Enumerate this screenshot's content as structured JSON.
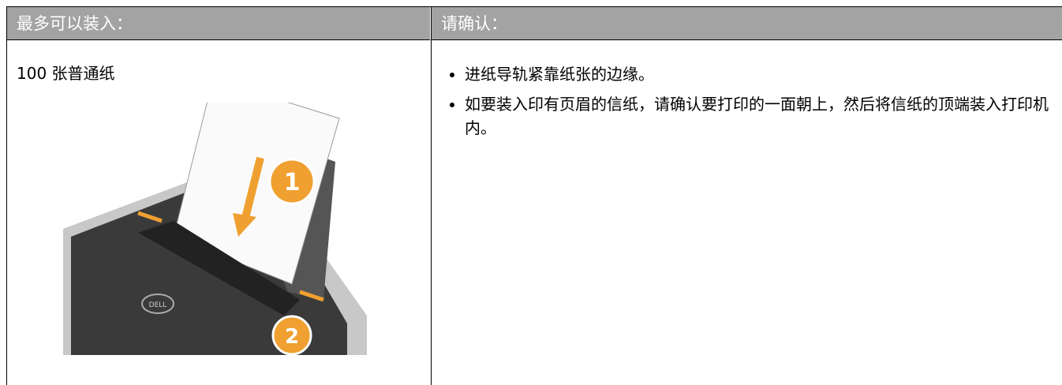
{
  "table": {
    "headers": [
      "最多可以装入：",
      "请确认："
    ],
    "rows": [
      [
        "100 张普通纸",
        [
          "进纸导轨紧靠纸张的边缘。",
          "如要装入印有页眉的信纸，请确认要打印的一面朝上，然后将信纸的顶端装入打印机内。"
        ]
      ]
    ]
  },
  "illustration": {
    "callouts": [
      "1",
      "2"
    ],
    "logo": "DELL"
  }
}
